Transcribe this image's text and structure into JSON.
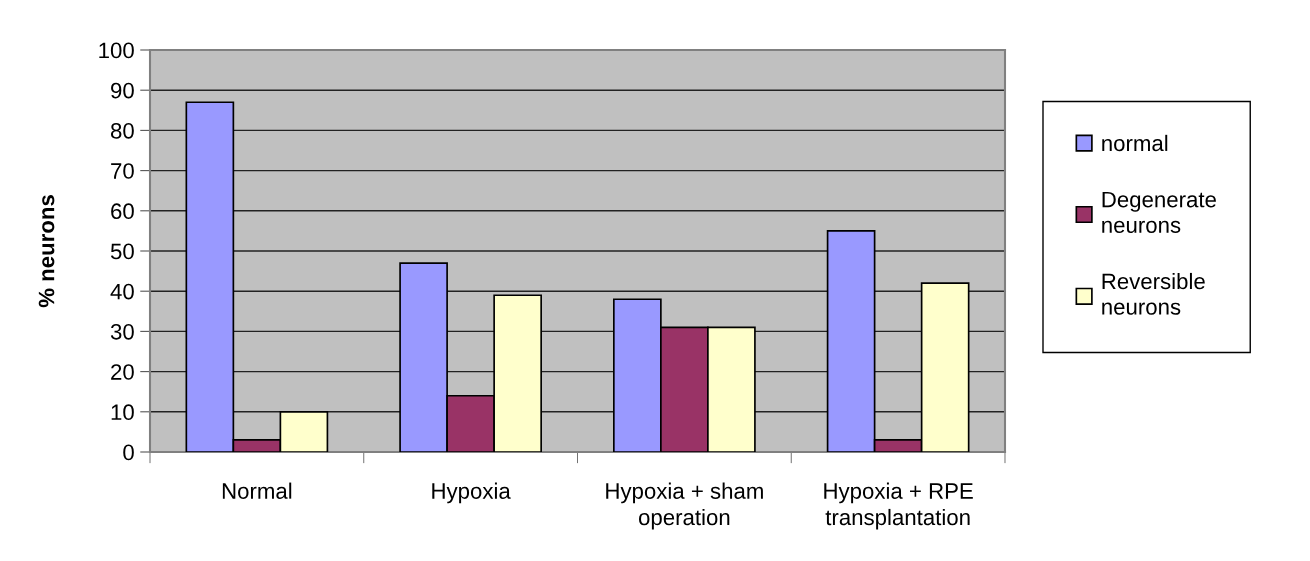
{
  "chart_data": {
    "type": "bar",
    "ylabel": "% neurons",
    "categories": [
      "Normal",
      "Hypoxia",
      "Hypoxia + sham operation",
      "Hypoxia + RPE transplantation"
    ],
    "series": [
      {
        "name": "normal",
        "color": "#9999ff",
        "values": [
          87,
          47,
          38,
          55
        ]
      },
      {
        "name": "Degenerate neurons",
        "color": "#993366",
        "values": [
          3,
          14,
          31,
          3
        ]
      },
      {
        "name": "Reversible neurons",
        "color": "#ffffcc",
        "values": [
          10,
          39,
          31,
          42
        ]
      }
    ],
    "ylim": [
      0,
      100
    ],
    "yticks": [
      0,
      10,
      20,
      30,
      40,
      50,
      60,
      70,
      80,
      90,
      100
    ],
    "grid": "y",
    "legend": "right"
  }
}
